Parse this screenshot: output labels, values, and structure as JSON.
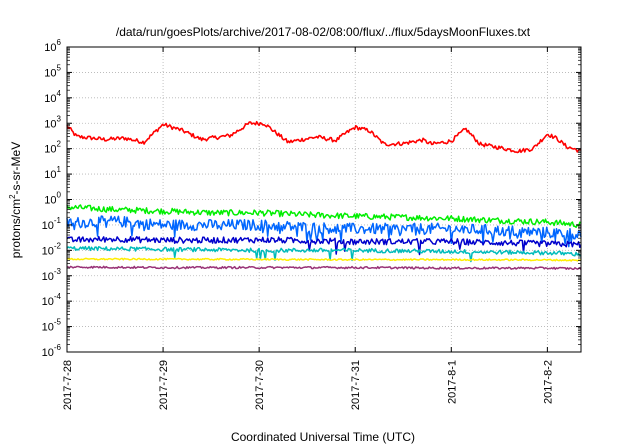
{
  "chart_data": {
    "type": "line",
    "title": "/data/run/goesPlots/archive/2017-08-02/08:00/flux/../flux/5daysMoonFluxes.txt",
    "xlabel": "Coordinated Universal Time (UTC)",
    "ylabel": "protons/cm2-s-sr-MeV",
    "ylabel_parts": {
      "pre": "protons/cm",
      "sup": "2",
      "post": "-s-sr-MeV"
    },
    "yscale": "log",
    "ylim_exp": [
      -6,
      6
    ],
    "yticks": [
      {
        "base": "10",
        "exp": "-6"
      },
      {
        "base": "10",
        "exp": "-5"
      },
      {
        "base": "10",
        "exp": "-4"
      },
      {
        "base": "10",
        "exp": "-3"
      },
      {
        "base": "10",
        "exp": "-2"
      },
      {
        "base": "10",
        "exp": "-1"
      },
      {
        "base": "10",
        "exp": "0"
      },
      {
        "base": "10",
        "exp": "1"
      },
      {
        "base": "10",
        "exp": "2"
      },
      {
        "base": "10",
        "exp": "3"
      },
      {
        "base": "10",
        "exp": "4"
      },
      {
        "base": "10",
        "exp": "5"
      },
      {
        "base": "10",
        "exp": "6"
      }
    ],
    "xlim_days": [
      0,
      5.35
    ],
    "xticks": [
      {
        "label": "2017-7-28",
        "day": 0
      },
      {
        "label": "2017-7-29",
        "day": 1
      },
      {
        "label": "2017-7-30",
        "day": 2
      },
      {
        "label": "2017-7-31",
        "day": 3
      },
      {
        "label": "2017-8-1",
        "day": 4
      },
      {
        "label": "2017-8-2",
        "day": 5
      }
    ],
    "grid": true,
    "series": [
      {
        "color": "#ff0000",
        "anchors": [
          [
            0,
            800
          ],
          [
            0.1,
            300
          ],
          [
            0.4,
            230
          ],
          [
            0.6,
            260
          ],
          [
            0.8,
            180
          ],
          [
            1.0,
            900
          ],
          [
            1.2,
            520
          ],
          [
            1.4,
            230
          ],
          [
            1.7,
            330
          ],
          [
            1.9,
            1000
          ],
          [
            2.05,
            1000
          ],
          [
            2.3,
            180
          ],
          [
            2.6,
            290
          ],
          [
            2.8,
            210
          ],
          [
            2.9,
            400
          ],
          [
            3.0,
            700
          ],
          [
            3.15,
            500
          ],
          [
            3.3,
            150
          ],
          [
            3.5,
            160
          ],
          [
            3.7,
            220
          ],
          [
            3.8,
            150
          ],
          [
            4.0,
            200
          ],
          [
            4.15,
            600
          ],
          [
            4.3,
            150
          ],
          [
            4.5,
            110
          ],
          [
            4.7,
            80
          ],
          [
            4.85,
            100
          ],
          [
            5.0,
            380
          ],
          [
            5.1,
            250
          ],
          [
            5.2,
            120
          ],
          [
            5.35,
            80
          ]
        ]
      },
      {
        "color": "#00ee00",
        "anchors": [
          [
            0,
            0.5
          ],
          [
            0.5,
            0.4
          ],
          [
            1.0,
            0.35
          ],
          [
            1.5,
            0.3
          ],
          [
            2.0,
            0.3
          ],
          [
            2.5,
            0.25
          ],
          [
            3.0,
            0.22
          ],
          [
            3.5,
            0.2
          ],
          [
            4.0,
            0.18
          ],
          [
            4.5,
            0.15
          ],
          [
            5.0,
            0.13
          ],
          [
            5.35,
            0.1
          ]
        ]
      },
      {
        "color": "#0066ff",
        "anchors": [
          [
            0,
            0.12
          ],
          [
            0.5,
            0.14
          ],
          [
            1.0,
            0.1
          ],
          [
            1.5,
            0.1
          ],
          [
            2.0,
            0.1
          ],
          [
            2.5,
            0.08
          ],
          [
            3.0,
            0.07
          ],
          [
            3.5,
            0.07
          ],
          [
            4.0,
            0.07
          ],
          [
            4.5,
            0.06
          ],
          [
            5.0,
            0.05
          ],
          [
            5.35,
            0.045
          ]
        ]
      },
      {
        "color": "#0000cc",
        "anchors": [
          [
            0,
            0.025
          ],
          [
            0.5,
            0.028
          ],
          [
            1.0,
            0.025
          ],
          [
            1.5,
            0.025
          ],
          [
            2.0,
            0.026
          ],
          [
            2.5,
            0.024
          ],
          [
            3.0,
            0.022
          ],
          [
            3.5,
            0.022
          ],
          [
            4.0,
            0.022
          ],
          [
            4.5,
            0.02
          ],
          [
            5.0,
            0.018
          ],
          [
            5.35,
            0.017
          ]
        ]
      },
      {
        "color": "#00bbbb",
        "anchors": [
          [
            0,
            0.012
          ],
          [
            1.0,
            0.011
          ],
          [
            2.0,
            0.01
          ],
          [
            3.0,
            0.01
          ],
          [
            4.0,
            0.009
          ],
          [
            5.0,
            0.008
          ],
          [
            5.35,
            0.007
          ]
        ]
      },
      {
        "color": "#ffee00",
        "anchors": [
          [
            0,
            0.0045
          ],
          [
            1.0,
            0.0045
          ],
          [
            2.0,
            0.0044
          ],
          [
            3.0,
            0.0043
          ],
          [
            4.0,
            0.0043
          ],
          [
            5.0,
            0.0042
          ],
          [
            5.35,
            0.004
          ]
        ]
      },
      {
        "color": "#993377",
        "anchors": [
          [
            0,
            0.0022
          ],
          [
            1.0,
            0.0021
          ],
          [
            2.0,
            0.0021
          ],
          [
            3.0,
            0.0021
          ],
          [
            4.0,
            0.002
          ],
          [
            5.0,
            0.002
          ],
          [
            5.35,
            0.0019
          ]
        ]
      }
    ]
  }
}
